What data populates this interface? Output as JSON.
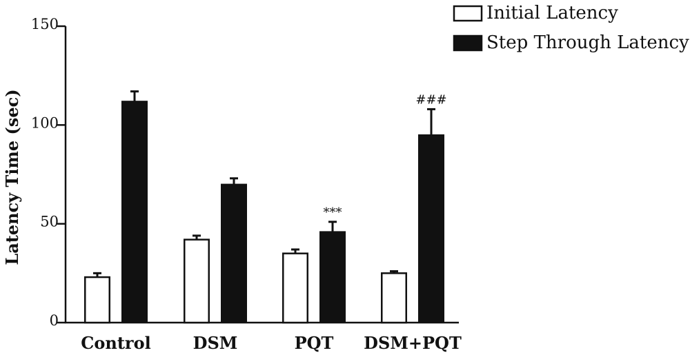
{
  "chart_data": {
    "type": "bar",
    "categories": [
      "Control",
      "DSM",
      "PQT",
      "DSM+PQT"
    ],
    "series": [
      {
        "name": "Initial Latency",
        "values": [
          23,
          42,
          35,
          25
        ],
        "errors": [
          2,
          2,
          2,
          1
        ],
        "fill": "#ffffff",
        "stroke": "#111111"
      },
      {
        "name": "Step Through Latency",
        "values": [
          112,
          70,
          46,
          95
        ],
        "errors": [
          5,
          3,
          5,
          13
        ],
        "fill": "#111111",
        "stroke": "#111111"
      }
    ],
    "annotations": [
      {
        "category": "PQT",
        "series": "Step Through Latency",
        "text": "***"
      },
      {
        "category": "DSM+PQT",
        "series": "Step Through Latency",
        "text": "###"
      }
    ],
    "ylabel": "Latency Time (sec)",
    "xlabel": "",
    "ylim": [
      0,
      150
    ],
    "yticks": [
      0,
      50,
      100,
      150
    ],
    "legend_position": "top-right",
    "grid": false
  }
}
